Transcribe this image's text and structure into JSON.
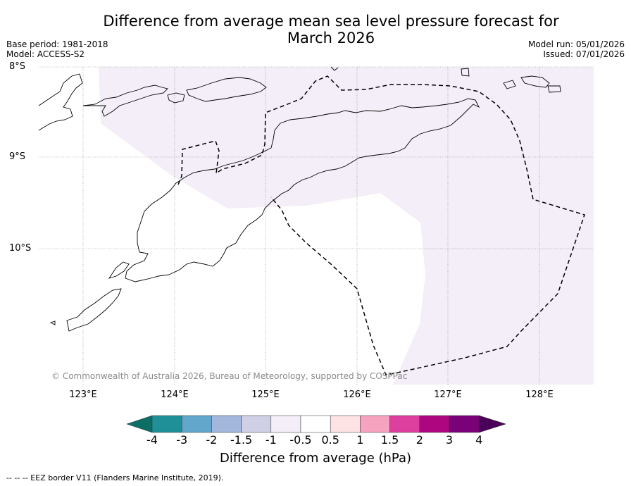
{
  "title_line1": "Difference from average mean sea level pressure forecast for",
  "title_line2": "March 2026",
  "base_period": "Base period: 1981-2018",
  "model": "Model: ACCESS-S2",
  "model_run": "Model run: 05/01/2026",
  "issued": "Issued: 07/01/2026",
  "lat_labels": [
    "8°S",
    "9°S",
    "10°S"
  ],
  "lon_labels": [
    "123°E",
    "124°E",
    "125°E",
    "126°E",
    "127°E",
    "128°E"
  ],
  "copyright": "© Commonwealth of Australia 2026, Bureau of Meteorology, supported by COSPPac",
  "colorbar": {
    "title": "Difference from average (hPa)",
    "labels": [
      "-4",
      "-3",
      "-2",
      "-1.5",
      "-1",
      "-0.5",
      "0.5",
      "1",
      "1.5",
      "2",
      "3",
      "4"
    ],
    "colors": [
      "#0d6e66",
      "#1f9098",
      "#62a6cc",
      "#a3b6dc",
      "#cfd0e6",
      "#f3eef7",
      "#ffffff",
      "#fde3e3",
      "#f6a3c0",
      "#dd3f9f",
      "#ae0680",
      "#7a0177",
      "#4a0059"
    ]
  },
  "map_fill_color": "#f3eef7",
  "footer": "--  --  -- EEZ border V11 (Flanders Marine Institute, 2019)."
}
